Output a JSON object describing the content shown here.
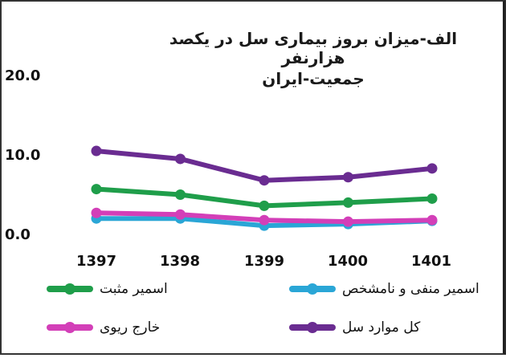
{
  "chart_data": {
    "type": "line",
    "title": "الف-میزان بروز بیماری سل در یکصد هزارنفر",
    "subtitle": "جمعیت-ایران",
    "categories": [
      "1397",
      "1398",
      "1399",
      "1400",
      "1401"
    ],
    "ylim": [
      0,
      20
    ],
    "y_ticks": [
      "0.0",
      "10.0",
      "20.0"
    ],
    "grid": false,
    "legend_position": "bottom",
    "series": [
      {
        "name": "کل موارد سل",
        "color": "#6a2c91",
        "values": [
          10.6,
          9.6,
          6.9,
          7.3,
          8.4
        ]
      },
      {
        "name": "اسمیر مثبت",
        "color": "#1f9e4a",
        "values": [
          5.8,
          5.1,
          3.7,
          4.1,
          4.6
        ]
      },
      {
        "name": "خارج ریوی",
        "color": "#d33fb8",
        "values": [
          2.8,
          2.6,
          1.9,
          1.7,
          1.9
        ]
      },
      {
        "name": "اسمیر منفی و نامشخص",
        "color": "#2aa6d6",
        "values": [
          2.1,
          2.1,
          1.2,
          1.4,
          1.8
        ]
      }
    ]
  }
}
